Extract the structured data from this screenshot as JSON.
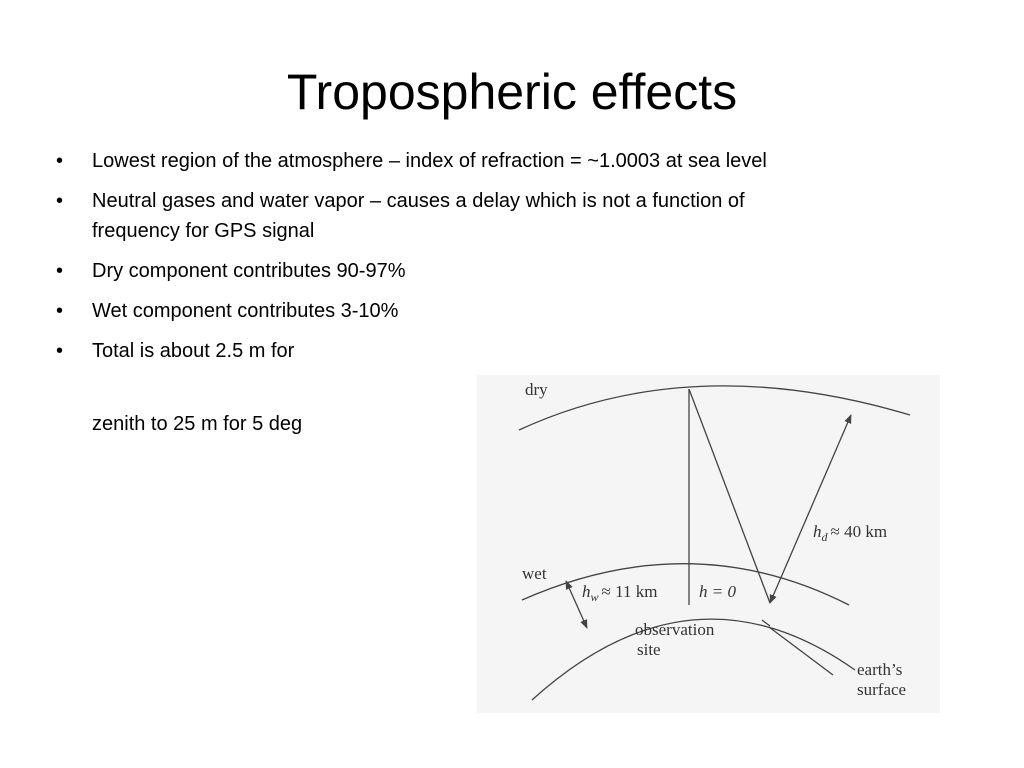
{
  "title": "Tropospheric effects",
  "bullets": [
    "Lowest region of the atmosphere – index of refraction = ~1.0003 at sea level",
    "Neutral gases and water vapor – causes a delay which is not a function of frequency for GPS signal",
    "Dry component contributes 90-97%",
    "Wet component contributes 3-10%",
    "Total is about 2.5 m for"
  ],
  "continuation": "zenith to 25 m for 5 deg",
  "diagram": {
    "dry": "dry",
    "wet": "wet",
    "hd": {
      "symbol": "h",
      "subscript": "d",
      "text": "≈ 40 km"
    },
    "hw": {
      "symbol": "h",
      "subscript": "w",
      "text": "≈ 11 km"
    },
    "h0": "h = 0",
    "site": [
      "observation",
      "site"
    ],
    "surface": [
      "earth’s",
      "surface"
    ]
  }
}
